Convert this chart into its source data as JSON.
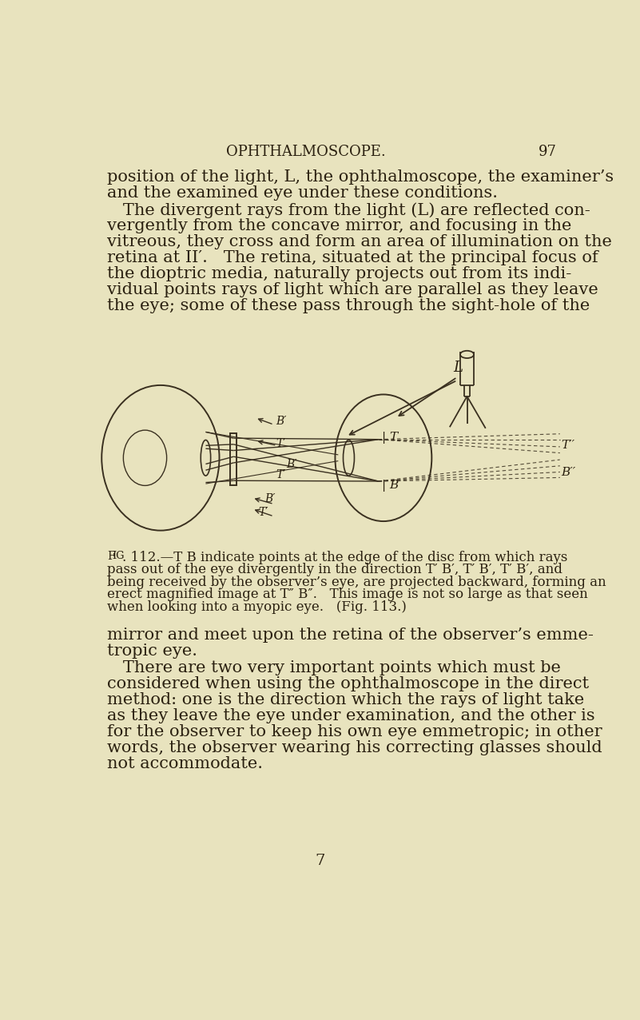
{
  "bg_color": "#e8e3be",
  "text_color": "#2a2010",
  "line_color": "#3a3020",
  "page_header": "OPHTHALMOSCOPE.",
  "page_number": "97",
  "para1_line1": "position of the light, L, the ophthalmoscope, the examiner’s",
  "para1_line2": "and the examined eye under these conditions.",
  "para2_line1": "   The divergent rays from the light (L) are reflected con-",
  "para2_line2": "vergently from the concave mirror, and focusing in the",
  "para2_line3": "vitreous, they cross and form an area of illumination on the",
  "para2_line4": "retina at II′.   The retina, situated at the principal focus of",
  "para2_line5": "the dioptric media, naturally projects out from its indi-",
  "para2_line6": "vidual points rays of light which are parallel as they leave",
  "para2_line7": "the eye; some of these pass through the sight-hole of the",
  "fig_caption_bold": "Fig. 112.",
  "fig_caption_dash": "—",
  "fig_caption_rest1": "T B indicate points at the edge of the disc from which rays",
  "fig_caption_line2": "pass out of the eye divergently in the direction T′ B′, T′ B′, T′ B′, and",
  "fig_caption_line3": "being received by the observer’s eye, are projected backward, forming an",
  "fig_caption_line4": "erect magnified image at T″ B″.   This image is not so large as that seen",
  "fig_caption_line5": "when looking into a myopic eye.   (Fig. 113.)",
  "para3_line1": "mirror and meet upon the retina of the observer’s emme-",
  "para3_line2": "tropic eye.",
  "para4_line1": "   There are two very important points which must be",
  "para4_line2": "considered when using the ophthalmoscope in the direct",
  "para4_line3": "method: one is the direction which the rays of light take",
  "para4_line4": "as they leave the eye under examination, and the other is",
  "para4_line5": "for the observer to keep his own eye emmetropic; in other",
  "para4_line6": "words, the observer wearing his correcting glasses should",
  "para4_line7": "not accommodate.",
  "footer_num": "7"
}
